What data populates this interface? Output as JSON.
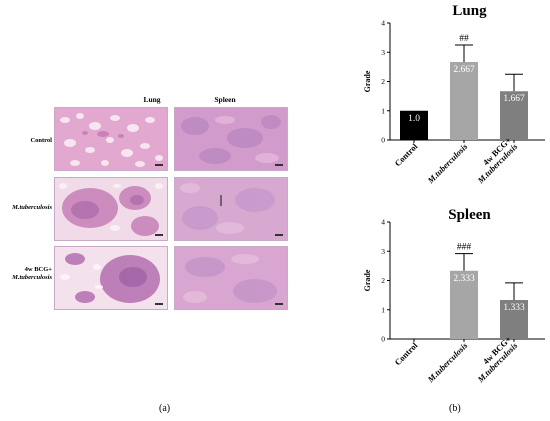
{
  "panel_a": {
    "column_headers": [
      "Lung",
      "Spleen"
    ],
    "row_labels": [
      "Control",
      "M.tuberculosis",
      "4w BCG+",
      "M.tuberculosis"
    ],
    "caption": "(a)"
  },
  "panel_b": {
    "caption": "(b)"
  },
  "chart_data": [
    {
      "type": "bar",
      "title": "Lung",
      "ylabel": "Grade",
      "ylim": [
        0,
        4
      ],
      "yticks": [
        0,
        1,
        2,
        3,
        4
      ],
      "categories": [
        "Control",
        "M.tuberculosis",
        "4w BCG+\nM.tuberculosis"
      ],
      "values": [
        1.0,
        2.667,
        1.667
      ],
      "value_labels": [
        "1.0",
        "2.667",
        "1.667"
      ],
      "error_upper": [
        null,
        3.25,
        2.25
      ],
      "annotations": [
        "",
        "##",
        ""
      ],
      "colors": [
        "#000000",
        "#a6a6a6",
        "#7f7f7f"
      ]
    },
    {
      "type": "bar",
      "title": "Spleen",
      "ylabel": "Grade",
      "ylim": [
        0,
        4
      ],
      "yticks": [
        0,
        1,
        2,
        3,
        4
      ],
      "categories": [
        "Control",
        "M.tuberculosis",
        "4w BCG+\nM.tuberculosis"
      ],
      "values": [
        0,
        2.333,
        1.333
      ],
      "value_labels": [
        "",
        "2.333",
        "1.333"
      ],
      "error_upper": [
        null,
        2.92,
        1.92
      ],
      "annotations": [
        "",
        "###",
        ""
      ],
      "colors": [
        "#000000",
        "#a6a6a6",
        "#7f7f7f"
      ]
    }
  ]
}
